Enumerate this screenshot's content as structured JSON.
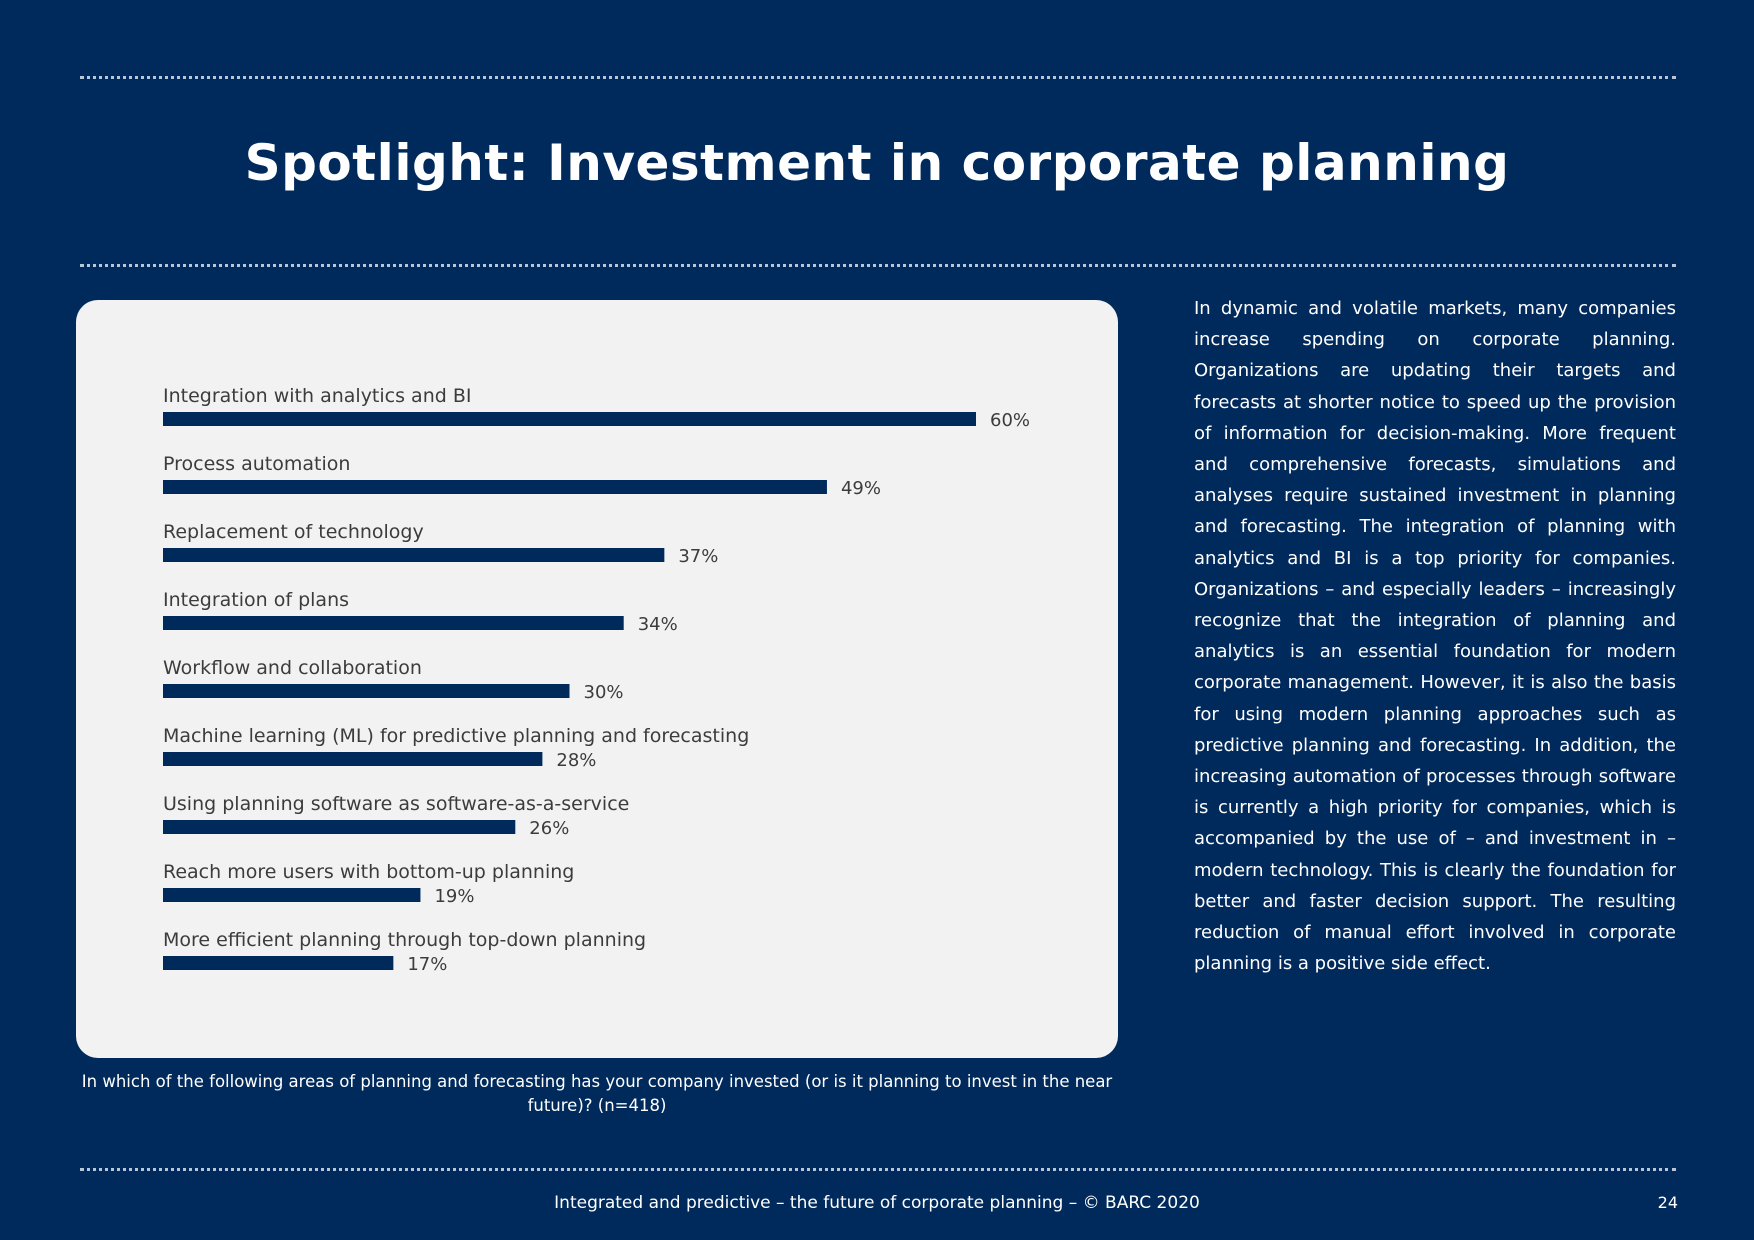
{
  "page": {
    "title": "Spotlight: Investment in corporate planning",
    "caption": "In which of the following areas of planning and forecasting has your company invested (or is it planning to invest in the near future)? (n=418)",
    "body_text": "In dynamic and volatile markets, many companies increase spending on corporate planning. Organizations are updating their targets and forecasts at shorter notice to speed up the provision of information for decision-making. More frequent and comprehensive forecasts, simulations and analyses require sustained investment in planning and forecasting. The integration of planning with analytics and BI is a top priority for companies. Organizations – and especially leaders – increasingly recognize that the integration of planning and analytics is an essential foundation for modern corporate management. However, it is also the basis for using modern planning approaches such as predictive planning and forecasting. In addition, the increasing automation of processes through software is currently a high priority for companies, which is accompanied by the use of – and investment in – modern technology. This is clearly the foundation for better and faster decision support. The resulting reduction of manual effort involved in corporate planning is a positive side effect.",
    "footer": "Integrated and predictive – the future of corporate planning  – © BARC 2020",
    "page_number": "24"
  },
  "colors": {
    "background": "#002a5c",
    "panel": "#f2f2f2",
    "bar": "#002a5c",
    "label_text": "#3c3c3c"
  },
  "chart_data": {
    "type": "bar",
    "orientation": "horizontal",
    "categories": [
      "Integration with analytics and BI",
      "Process automation",
      "Replacement of technology",
      "Integration of plans",
      "Workflow and collaboration",
      "Machine learning (ML) for predictive planning and forecasting",
      "Using planning software as software-as-a-service",
      "Reach more users with bottom-up planning",
      "More efficient planning through top-down planning"
    ],
    "values": [
      60,
      49,
      37,
      34,
      30,
      28,
      26,
      19,
      17
    ],
    "value_labels": [
      "60%",
      "49%",
      "37%",
      "34%",
      "30%",
      "28%",
      "26%",
      "19%",
      "17%"
    ],
    "unit": "%",
    "xlim": [
      0,
      60
    ],
    "grid": false,
    "legend": "none"
  }
}
